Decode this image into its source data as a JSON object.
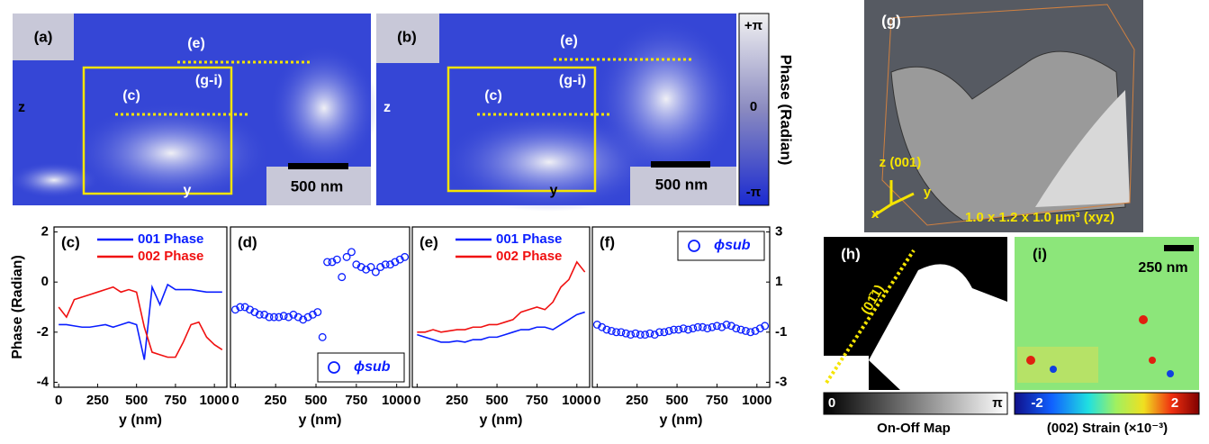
{
  "chart_data": [
    {
      "type": "line",
      "panel_label": "(c)",
      "xlabel": "y (nm)",
      "ylabel": "Phase (Radian)",
      "x": [
        0,
        50,
        100,
        150,
        200,
        250,
        300,
        350,
        400,
        450,
        500,
        550,
        600,
        650,
        700,
        750,
        800,
        850,
        900,
        950,
        1000,
        1050
      ],
      "series": [
        {
          "name": "001 Phase",
          "color": "#0a1eff",
          "values": [
            -1.7,
            -1.7,
            -1.75,
            -1.8,
            -1.8,
            -1.75,
            -1.7,
            -1.8,
            -1.7,
            -1.6,
            -1.7,
            -3.1,
            -0.2,
            -0.9,
            -0.1,
            -0.3,
            -0.3,
            -0.3,
            -0.35,
            -0.4,
            -0.4,
            -0.4
          ]
        },
        {
          "name": "002 Phase",
          "color": "#f01010",
          "values": [
            -1.0,
            -1.4,
            -0.7,
            -0.6,
            -0.5,
            -0.4,
            -0.3,
            -0.2,
            -0.4,
            -0.3,
            -0.4,
            -1.8,
            -2.8,
            -2.9,
            -3.0,
            -3.0,
            -2.4,
            -1.7,
            -1.6,
            -2.2,
            -2.5,
            -2.7
          ]
        }
      ],
      "xlim": [
        -30,
        1080
      ],
      "ylim": [
        -4.2,
        2.2
      ],
      "xticks": [
        0,
        250,
        500,
        750,
        1000
      ],
      "yticks": [
        2,
        0,
        -2,
        -4
      ],
      "yaxis_side": "left",
      "legend": "upper left"
    },
    {
      "type": "scatter",
      "panel_label": "(d)",
      "xlabel": "y (nm)",
      "x": [
        0,
        30,
        60,
        90,
        120,
        150,
        180,
        210,
        240,
        270,
        300,
        330,
        360,
        390,
        420,
        450,
        480,
        510,
        540,
        570,
        600,
        630,
        660,
        690,
        720,
        750,
        780,
        810,
        840,
        870,
        900,
        930,
        960,
        990,
        1020,
        1050
      ],
      "series": [
        {
          "name": "ϕsub",
          "color": "#0a1eff",
          "values": [
            -0.1,
            0,
            0,
            -0.1,
            -0.2,
            -0.3,
            -0.3,
            -0.4,
            -0.4,
            -0.4,
            -0.35,
            -0.4,
            -0.3,
            -0.4,
            -0.5,
            -0.4,
            -0.3,
            -0.2,
            -1.2,
            1.8,
            1.8,
            1.9,
            1.2,
            2.0,
            2.2,
            1.7,
            1.6,
            1.5,
            1.6,
            1.4,
            1.6,
            1.7,
            1.7,
            1.8,
            1.9,
            2.0
          ]
        }
      ],
      "xlim": [
        -30,
        1080
      ],
      "ylim": [
        -3.2,
        3.2
      ],
      "xticks": [
        0,
        250,
        500,
        750,
        1000
      ],
      "legend": "lower right"
    },
    {
      "type": "line",
      "panel_label": "(e)",
      "xlabel": "y (nm)",
      "x": [
        0,
        50,
        100,
        150,
        200,
        250,
        300,
        350,
        400,
        450,
        500,
        550,
        600,
        650,
        700,
        750,
        800,
        850,
        900,
        950,
        1000,
        1050
      ],
      "series": [
        {
          "name": "001 Phase",
          "color": "#0a1eff",
          "values": [
            -2.1,
            -2.2,
            -2.3,
            -2.4,
            -2.4,
            -2.35,
            -2.4,
            -2.3,
            -2.3,
            -2.2,
            -2.2,
            -2.1,
            -2.0,
            -1.9,
            -1.9,
            -1.8,
            -1.8,
            -1.9,
            -1.7,
            -1.5,
            -1.3,
            -1.2
          ]
        },
        {
          "name": "002 Phase",
          "color": "#f01010",
          "values": [
            -2.0,
            -2.0,
            -1.9,
            -2.0,
            -1.95,
            -1.9,
            -1.9,
            -1.8,
            -1.8,
            -1.7,
            -1.7,
            -1.6,
            -1.5,
            -1.2,
            -1.1,
            -1.0,
            -1.1,
            -0.8,
            -0.2,
            0.1,
            0.8,
            0.4
          ]
        }
      ],
      "xlim": [
        -30,
        1080
      ],
      "ylim": [
        -4.2,
        2.2
      ],
      "xticks": [
        0,
        250,
        500,
        750,
        1000
      ],
      "legend": "upper left"
    },
    {
      "type": "scatter",
      "panel_label": "(f)",
      "xlabel": "y (nm)",
      "x": [
        0,
        30,
        60,
        90,
        120,
        150,
        180,
        210,
        240,
        270,
        300,
        330,
        360,
        390,
        420,
        450,
        480,
        510,
        540,
        570,
        600,
        630,
        660,
        690,
        720,
        750,
        780,
        810,
        840,
        870,
        900,
        930,
        960,
        990,
        1020,
        1050
      ],
      "series": [
        {
          "name": "ϕsub",
          "color": "#0a1eff",
          "values": [
            -0.7,
            -0.8,
            -0.9,
            -0.95,
            -1.0,
            -1.0,
            -1.05,
            -1.1,
            -1.05,
            -1.1,
            -1.1,
            -1.05,
            -1.1,
            -1.0,
            -1.0,
            -0.95,
            -0.9,
            -0.9,
            -0.85,
            -0.9,
            -0.85,
            -0.8,
            -0.8,
            -0.85,
            -0.8,
            -0.75,
            -0.8,
            -0.7,
            -0.75,
            -0.85,
            -0.9,
            -0.95,
            -1.0,
            -0.95,
            -0.85,
            -0.75
          ]
        }
      ],
      "xlim": [
        -30,
        1080
      ],
      "ylim": [
        -3.2,
        3.2
      ],
      "xticks": [
        0,
        250,
        500,
        750,
        1000
      ],
      "yticks": [
        3,
        1,
        -1,
        -3
      ],
      "yaxis_side": "right",
      "legend": "upper right"
    }
  ],
  "images": {
    "a": {
      "label": "(a)",
      "line_e": "(e)",
      "line_g": "(g-i)",
      "line_c": "(c)",
      "axis_z": "z",
      "axis_y": "y",
      "scale": "500 nm"
    },
    "b": {
      "label": "(b)",
      "line_e": "(e)",
      "line_g": "(g-i)",
      "line_c": "(c)",
      "axis_z": "z",
      "axis_y": "y",
      "scale": "500 nm"
    },
    "phase_colorbar": {
      "top": "+π",
      "middle": "0",
      "bottom": "-π",
      "title": "Phase (Radian)"
    },
    "g": {
      "label": "(g)",
      "axis_z": "z (001)",
      "axis_x": "x",
      "axis_y": "y",
      "size": "1.0 x 1.2 x 1.0 μm³ (xyz)"
    },
    "h": {
      "label": "(h)",
      "direction": "(01̄1)",
      "cbar_min": "0",
      "cbar_max": "π",
      "title": "On-Off Map"
    },
    "i": {
      "label": "(i)",
      "scale": "250 nm",
      "cbar_min": "-2",
      "cbar_max": "2",
      "title": "(002) Strain (×10⁻³)"
    }
  }
}
